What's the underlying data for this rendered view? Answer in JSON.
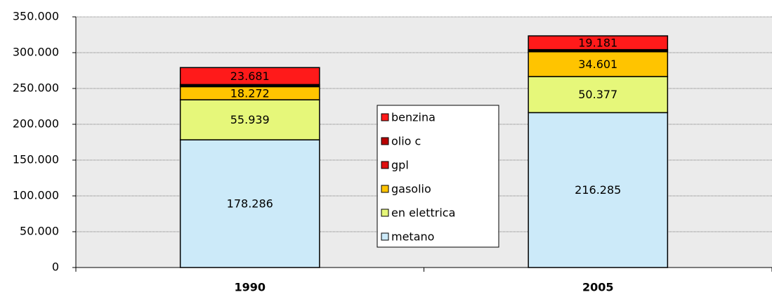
{
  "chart_data": {
    "type": "stacked_bar",
    "categories": [
      "1990",
      "2005"
    ],
    "series": [
      {
        "name": "metano",
        "color": "#cceaf9",
        "values": [
          178286,
          216285
        ],
        "value_labels": [
          "178.286",
          "216.285"
        ]
      },
      {
        "name": "en elettrica",
        "color": "#e6f77a",
        "values": [
          55939,
          50377
        ],
        "value_labels": [
          "55.939",
          "50.377"
        ]
      },
      {
        "name": "gasolio",
        "color": "#ffc400",
        "values": [
          18272,
          34601
        ],
        "value_labels": [
          "18.272",
          "34.601"
        ]
      },
      {
        "name": "gpl",
        "color": "#e01010",
        "values": [
          1500,
          1500
        ],
        "value_labels": [
          null,
          null
        ]
      },
      {
        "name": "olio c",
        "color": "#b80000",
        "values": [
          1500,
          1500
        ],
        "value_labels": [
          null,
          null
        ]
      },
      {
        "name": "benzina",
        "color": "#ff1a1a",
        "values": [
          23681,
          19181
        ],
        "value_labels": [
          "23.681",
          "19.181"
        ]
      }
    ],
    "ylim": [
      0,
      350000
    ],
    "yticks": [
      0,
      {
        "value": 50000,
        "label": "50.000"
      },
      {
        "value": 100000,
        "label": "100.000"
      },
      {
        "value": 150000,
        "label": "150.000"
      },
      {
        "value": 200000,
        "label": "200.000"
      },
      {
        "value": 250000,
        "label": "250.000"
      },
      {
        "value": 300000,
        "label": "300.000"
      },
      {
        "value": 350000,
        "label": "350.000"
      }
    ],
    "grid": true,
    "legend": "center"
  }
}
